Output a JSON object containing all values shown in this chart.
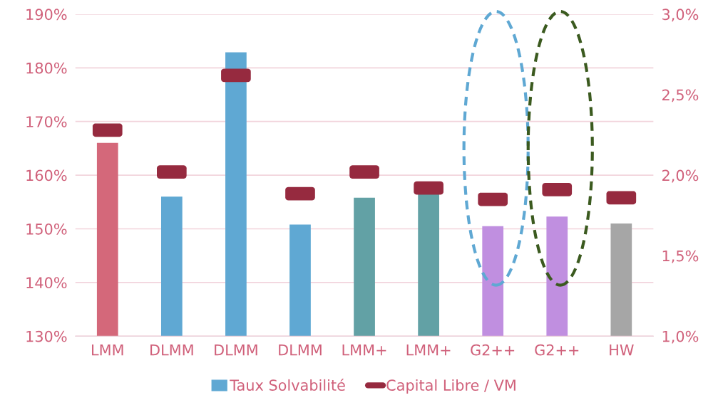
{
  "chart_data": {
    "type": "bar",
    "categories": [
      "LMM",
      "DLMM",
      "DLMM",
      "DLMM",
      "LMM+",
      "LMM+",
      "G2++",
      "G2++",
      "HW"
    ],
    "series": [
      {
        "name": "Taux Solvabilité",
        "color": "#5fa8d3",
        "colors": [
          "#d4687a",
          "#5fa8d3",
          "#5fa8d3",
          "#5fa8d3",
          "#62a1a5",
          "#62a1a5",
          "#c08fe0",
          "#c08fe0",
          "#a6a6a6"
        ],
        "values": [
          166.0,
          156.0,
          182.9,
          150.8,
          155.8,
          156.6,
          150.5,
          152.3,
          151.0
        ]
      },
      {
        "name": "Capital Libre / VM",
        "type": "scatter",
        "axis": "y2",
        "color": "#962a3f",
        "values": [
          2.28,
          2.02,
          2.62,
          1.885,
          2.02,
          1.92,
          1.85,
          1.91,
          1.86
        ]
      }
    ],
    "ylim": [
      130,
      190
    ],
    "yticks": [
      {
        "value": 130,
        "label": "130%"
      },
      {
        "value": 140,
        "label": "140%"
      },
      {
        "value": 150,
        "label": "150%"
      },
      {
        "value": 160,
        "label": "160%"
      },
      {
        "value": 170,
        "label": "170%"
      },
      {
        "value": 180,
        "label": "180%"
      },
      {
        "value": 190,
        "label": "190%"
      }
    ],
    "y2lim": [
      1.0,
      3.0
    ],
    "y2ticks": [
      {
        "value": 1.0,
        "label": "1,0%"
      },
      {
        "value": 1.5,
        "label": "1,5%"
      },
      {
        "value": 2.0,
        "label": "2,0%"
      },
      {
        "value": 2.5,
        "label": "2,5%"
      },
      {
        "value": 3.0,
        "label": "3,0%"
      }
    ],
    "grid": "y",
    "legend": "bottom"
  }
}
